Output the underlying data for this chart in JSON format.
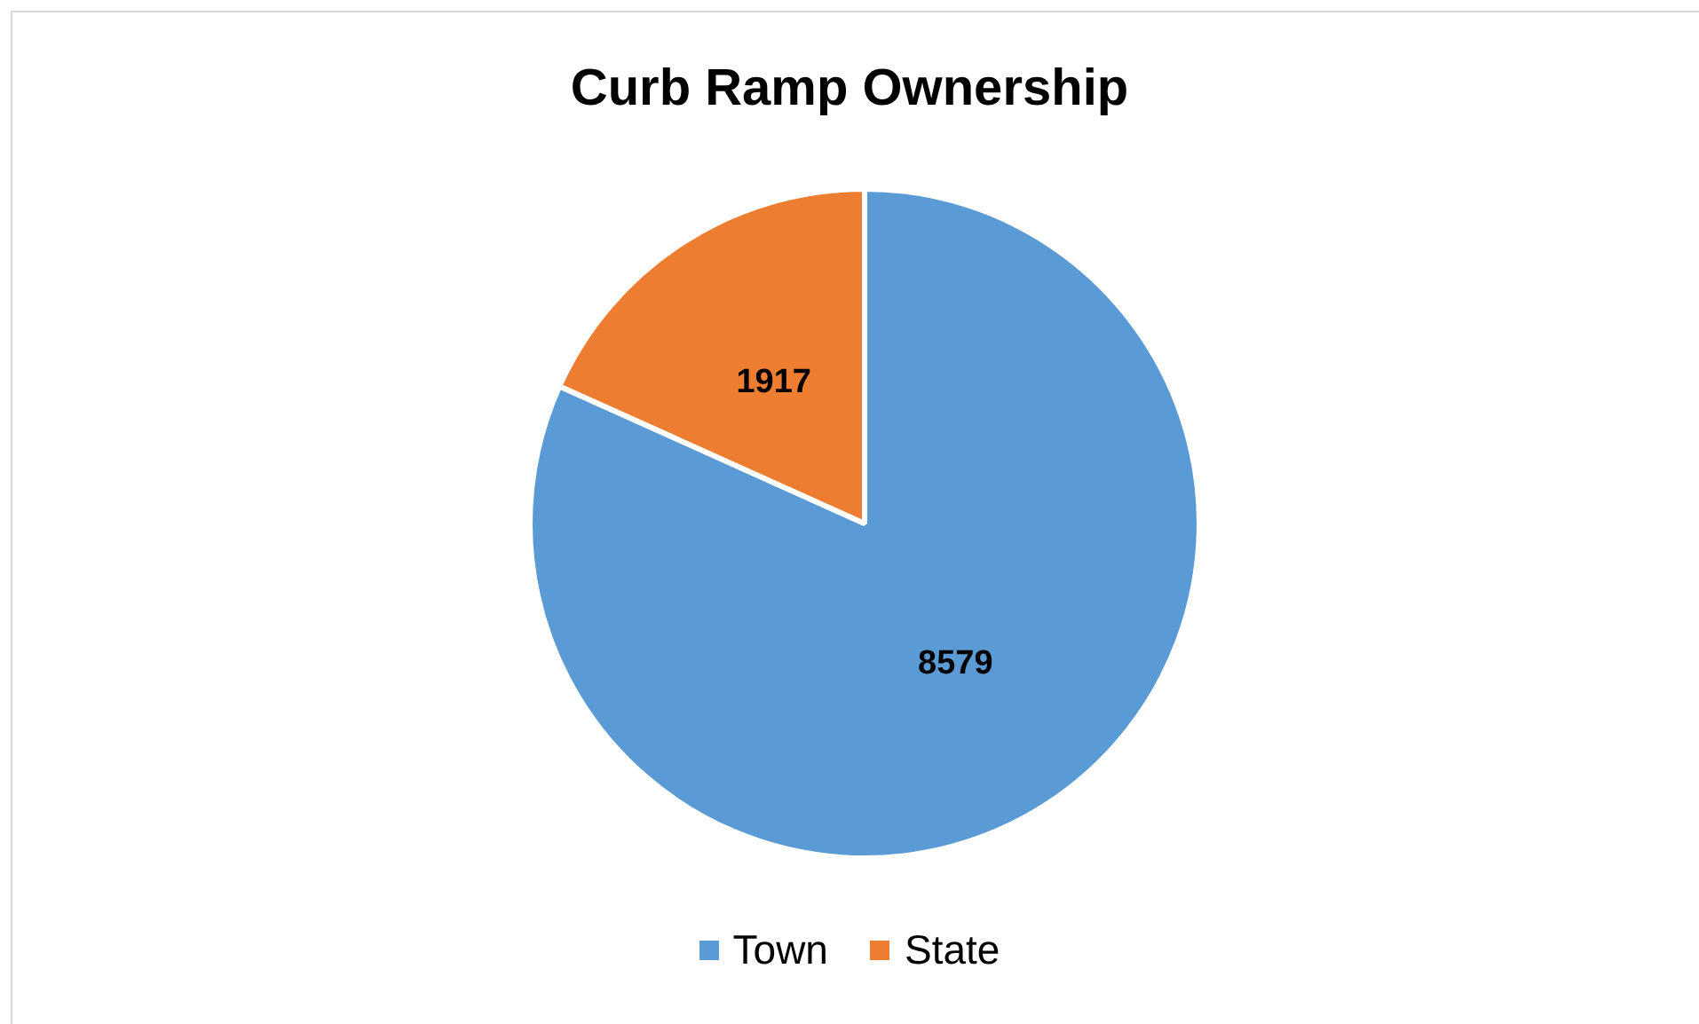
{
  "chart_data": {
    "type": "pie",
    "title": "Curb Ramp Ownership",
    "categories": [
      "Town",
      "State"
    ],
    "values": [
      8579,
      1917
    ],
    "colors": [
      "#5b9bd5",
      "#ed7d31"
    ],
    "data_labels": true,
    "legend": "bottom"
  }
}
